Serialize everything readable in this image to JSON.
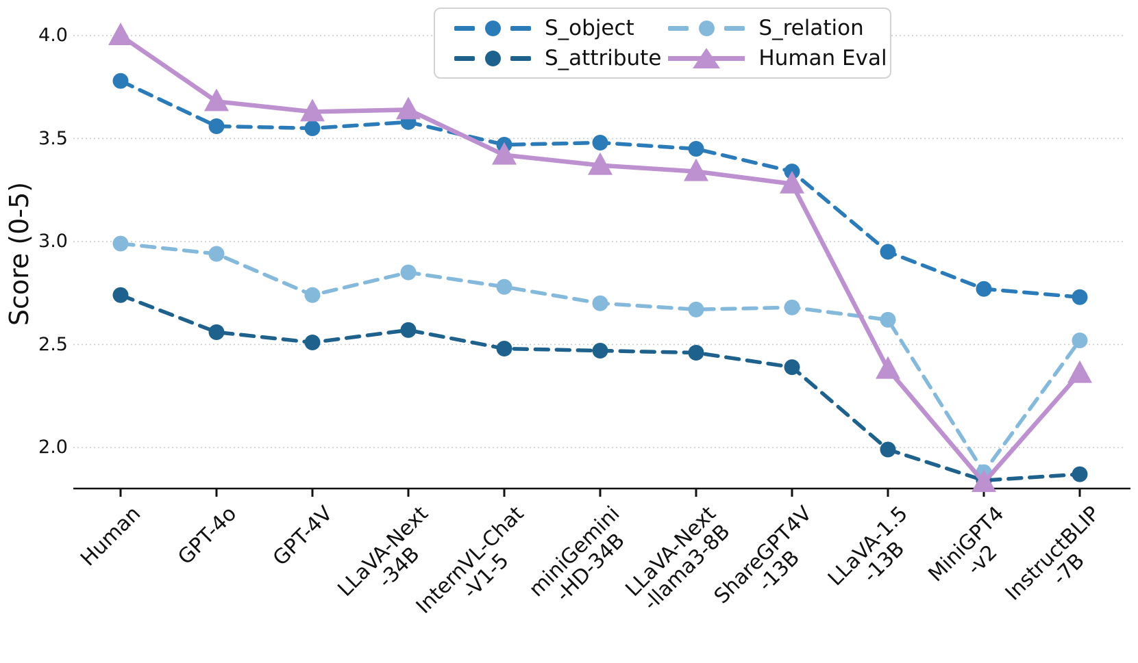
{
  "figure": {
    "background": "#ffffff",
    "axis_color": "#111111",
    "gridline_color": "#c9c9c9"
  },
  "chart_data": {
    "type": "line",
    "title": "",
    "xlabel": "",
    "ylabel": "Score (0-5)",
    "ylim": [
      1.8,
      4.15
    ],
    "yticks": [
      {
        "label": "2.0",
        "value": 2.0
      },
      {
        "label": "2.5",
        "value": 2.5
      },
      {
        "label": "3.0",
        "value": 3.0
      },
      {
        "label": "3.5",
        "value": 3.5
      },
      {
        "label": "4.0",
        "value": 4.0
      }
    ],
    "grid": "horizontal dotted gridlines at y ticks",
    "legend": {
      "position": "upper center",
      "columns": 2,
      "order": "column-major",
      "entries": [
        "S_object",
        "S_attribute",
        "S_relation",
        "Human Eval"
      ]
    },
    "categories": [
      "Human",
      "GPT-4o",
      "GPT-4V",
      "LLaVA-Next\n-34B",
      "InternVL-Chat\n-V1-5",
      "miniGemini\n-HD-34B",
      "LLaVA-Next\n-llama3-8B",
      "ShareGPT4V\n-13B",
      "LLaVA-1.5\n-13B",
      "MiniGPT4\n-v2",
      "InstructBLIP\n-7B"
    ],
    "series": [
      {
        "name": "S_object",
        "color": "#2B7BB9",
        "line_style": "dashed",
        "marker": "circle",
        "values": [
          3.78,
          3.56,
          3.55,
          3.58,
          3.47,
          3.48,
          3.45,
          3.34,
          2.95,
          2.77,
          2.73
        ]
      },
      {
        "name": "S_attribute",
        "color": "#1F618D",
        "line_style": "dashed",
        "marker": "circle",
        "values": [
          2.74,
          2.56,
          2.51,
          2.57,
          2.48,
          2.47,
          2.46,
          2.39,
          1.99,
          1.84,
          1.87
        ]
      },
      {
        "name": "S_relation",
        "color": "#85B9DB",
        "line_style": "dashed",
        "marker": "circle",
        "values": [
          2.99,
          2.94,
          2.74,
          2.85,
          2.78,
          2.7,
          2.67,
          2.68,
          2.62,
          1.88,
          2.52
        ]
      },
      {
        "name": "Human Eval",
        "color": "#BD90CF",
        "line_style": "solid",
        "marker": "triangle",
        "values": [
          4.0,
          3.68,
          3.63,
          3.64,
          3.42,
          3.37,
          3.34,
          3.28,
          2.38,
          1.83,
          2.36
        ]
      }
    ]
  }
}
